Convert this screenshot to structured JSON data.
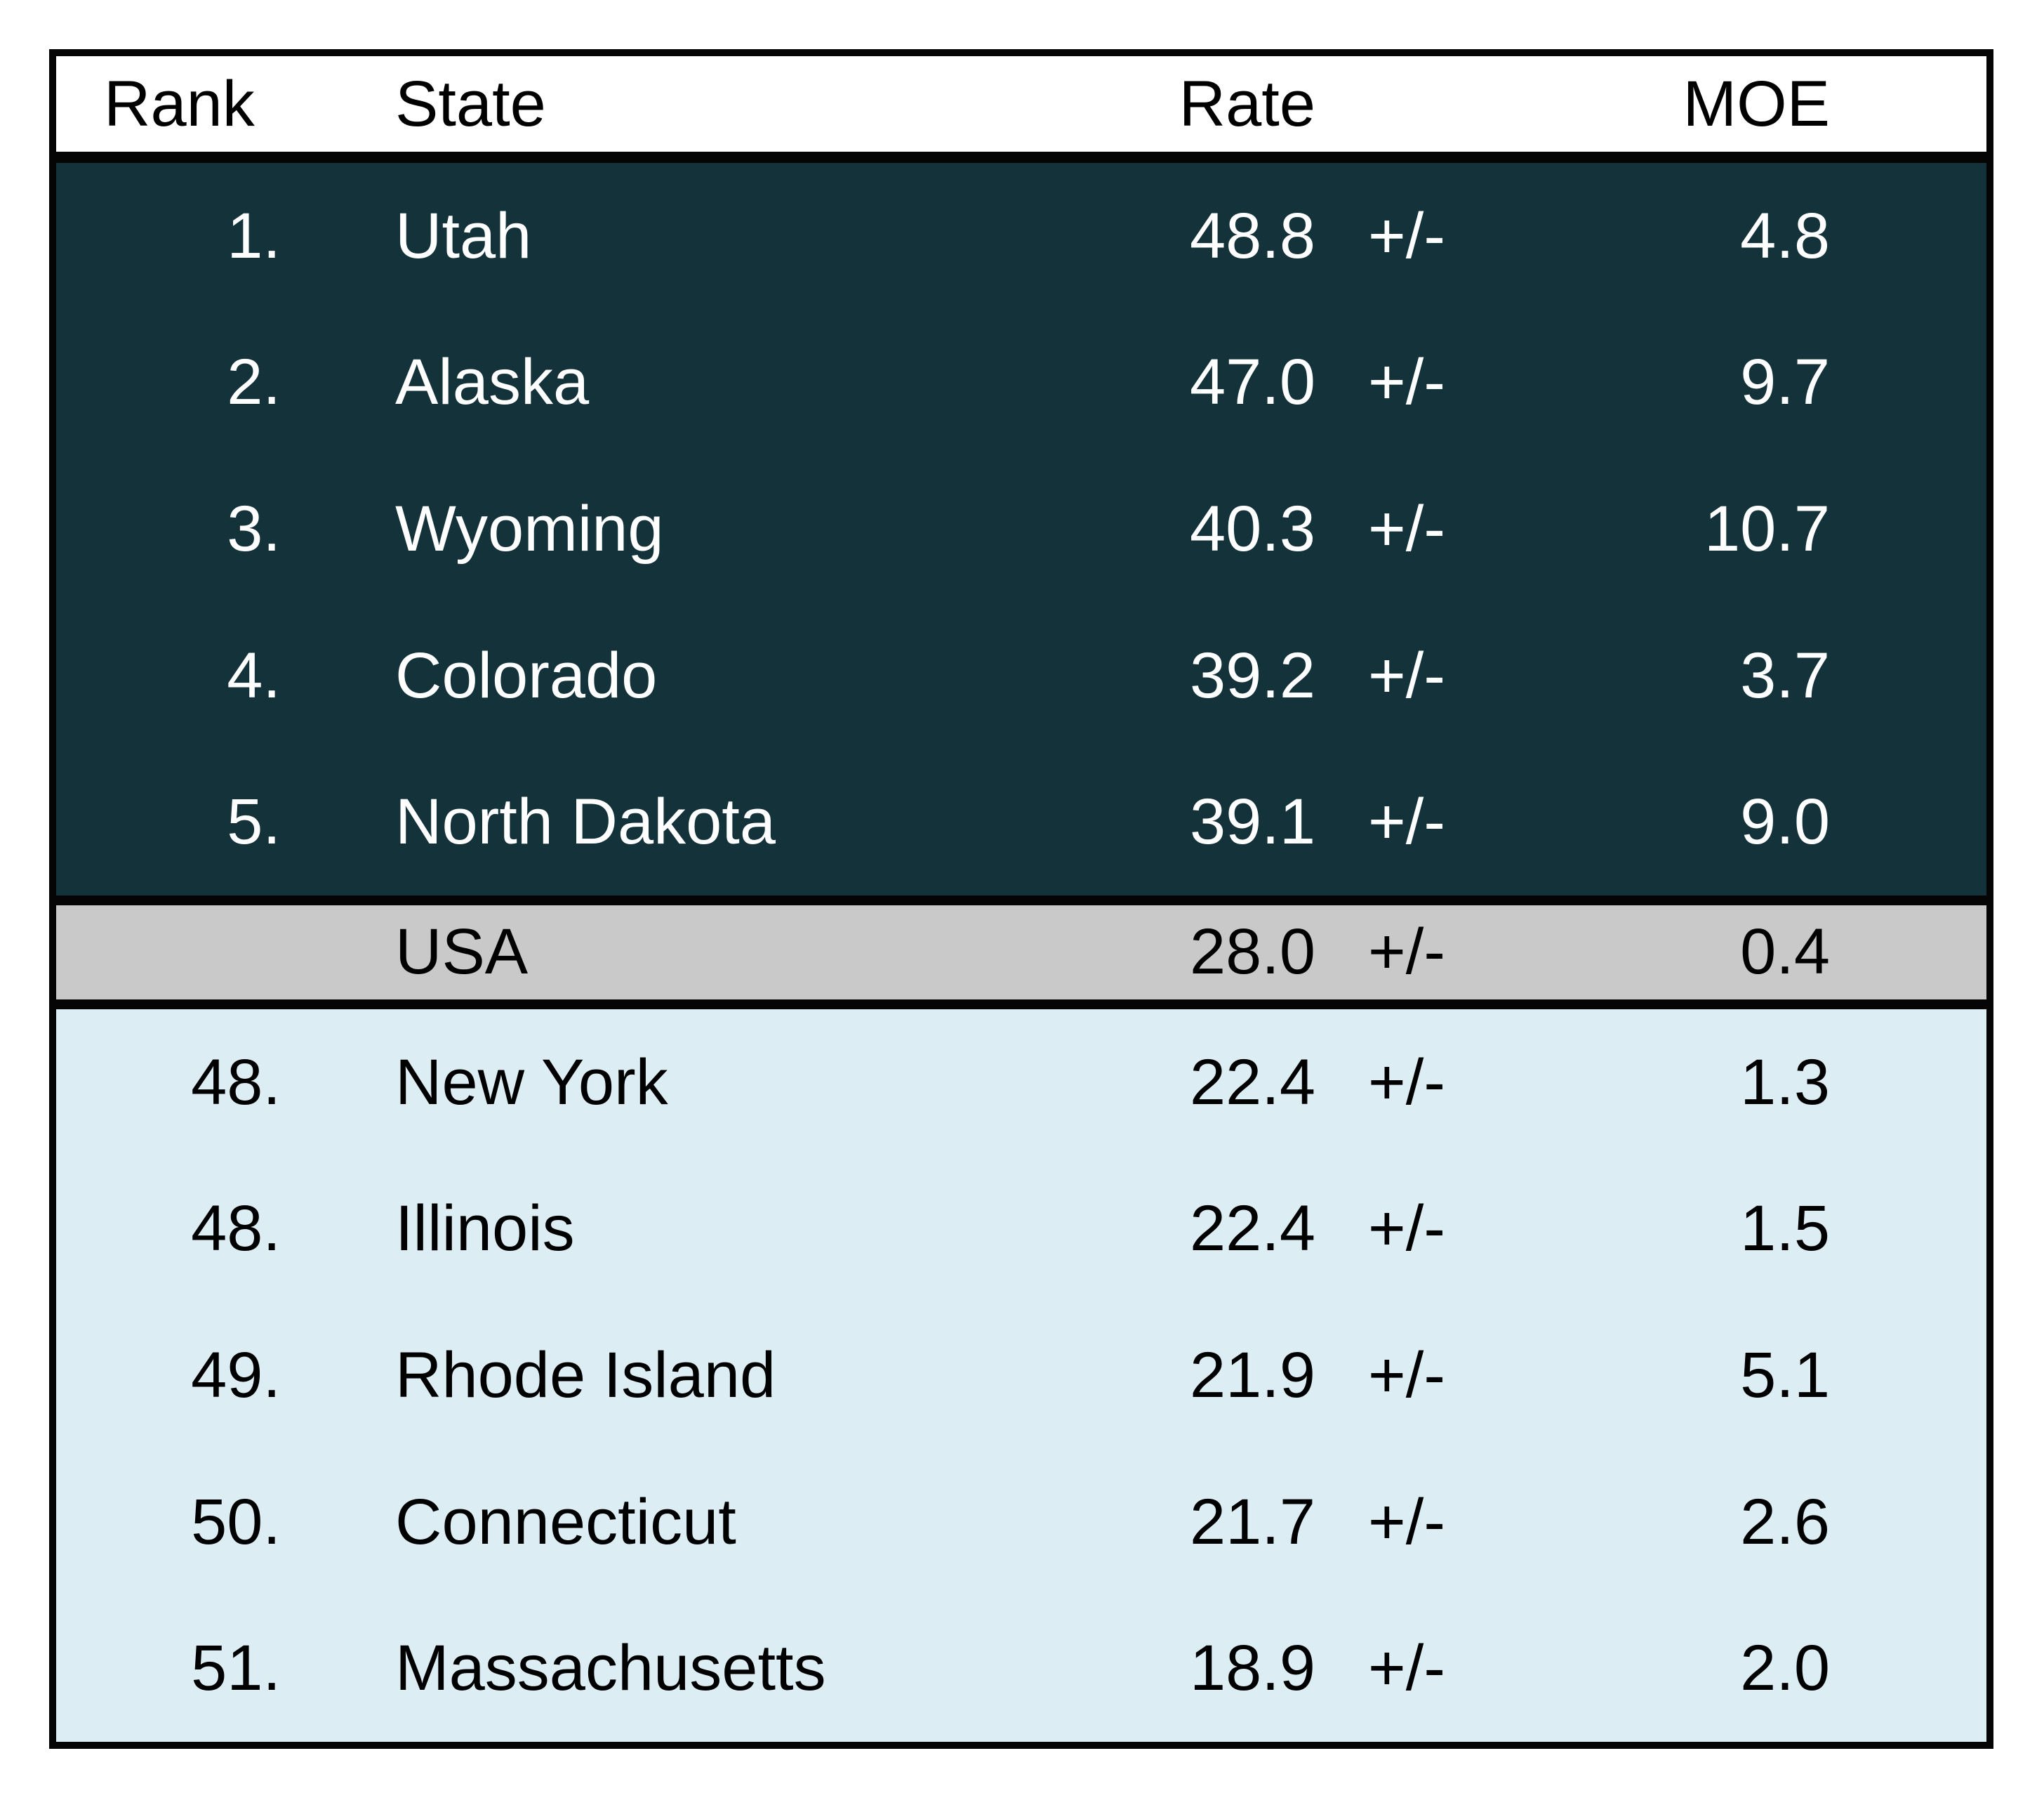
{
  "page": {
    "background": "#ffffff"
  },
  "colors": {
    "page_bg": "#ffffff",
    "header_bg": "#ffffff",
    "top_section_bg": "#13323a",
    "top_section_text": "#ffffff",
    "usa_bg": "#c9c9c9",
    "bottom_section_bg": "#dcedf4",
    "border": "#050505"
  },
  "table": {
    "header": {
      "rank": "Rank",
      "state": "State",
      "rate": "Rate",
      "moe": "MOE"
    },
    "plus_minus": "+/-",
    "top_states": [
      {
        "rank": "1.",
        "state": "Utah",
        "rate": "48.8",
        "moe": "4.8"
      },
      {
        "rank": "2.",
        "state": "Alaska",
        "rate": "47.0",
        "moe": "9.7"
      },
      {
        "rank": "3.",
        "state": "Wyoming",
        "rate": "40.3",
        "moe": "10.7"
      },
      {
        "rank": "4.",
        "state": "Colorado",
        "rate": "39.2",
        "moe": "3.7"
      },
      {
        "rank": "5.",
        "state": "North Dakota",
        "rate": "39.1",
        "moe": "9.0"
      }
    ],
    "usa": {
      "rank": "",
      "state": "USA",
      "rate": "28.0",
      "moe": "0.4"
    },
    "bottom_states": [
      {
        "rank": "48.",
        "state": "New York",
        "rate": "22.4",
        "moe": "1.3"
      },
      {
        "rank": "48.",
        "state": "Illinois",
        "rate": "22.4",
        "moe": "1.5"
      },
      {
        "rank": "49.",
        "state": "Rhode Island",
        "rate": "21.9",
        "moe": "5.1"
      },
      {
        "rank": "50.",
        "state": "Connecticut",
        "rate": "21.7",
        "moe": "2.6"
      },
      {
        "rank": "51.",
        "state": "Massachusetts",
        "rate": "18.9",
        "moe": "2.0"
      }
    ]
  },
  "chart_data": {
    "type": "table",
    "columns": [
      "Rank",
      "State",
      "Rate",
      "MOE"
    ],
    "rows": [
      [
        "1.",
        "Utah",
        48.8,
        4.8
      ],
      [
        "2.",
        "Alaska",
        47.0,
        9.7
      ],
      [
        "3.",
        "Wyoming",
        40.3,
        10.7
      ],
      [
        "4.",
        "Colorado",
        39.2,
        3.7
      ],
      [
        "5.",
        "North Dakota",
        39.1,
        9.0
      ],
      [
        "",
        "USA",
        28.0,
        0.4
      ],
      [
        "48.",
        "New York",
        22.4,
        1.3
      ],
      [
        "48.",
        "Illinois",
        22.4,
        1.5
      ],
      [
        "49.",
        "Rhode Island",
        21.9,
        5.1
      ],
      [
        "50.",
        "Connecticut",
        21.7,
        2.6
      ],
      [
        "51.",
        "Massachusetts",
        18.9,
        2.0
      ]
    ],
    "notes": "MOE column values are margins of error shown as +/- x.x; USA row is the national average separator between top-5 and bottom-5 ranked states"
  }
}
